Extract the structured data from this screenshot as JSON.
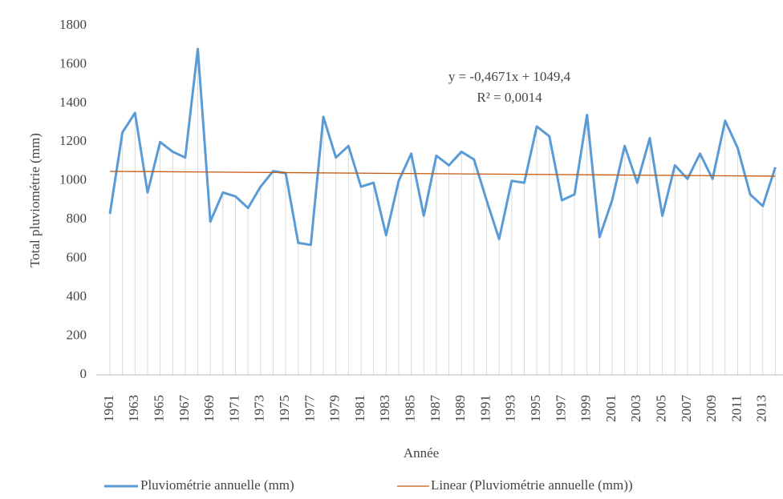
{
  "chart_data": {
    "type": "line",
    "y_label": "Total pluviométrie (mm)",
    "x_label": "Année",
    "categories": [
      "1961",
      null,
      "1963",
      null,
      "1965",
      null,
      "1967",
      null,
      "1969",
      null,
      "1971",
      null,
      "1973",
      null,
      "1975",
      null,
      "1977",
      null,
      "1979",
      null,
      "1981",
      null,
      "1983",
      null,
      "1985",
      null,
      "1987",
      null,
      "1989",
      null,
      "1991",
      null,
      "1993",
      null,
      "1995",
      null,
      "1997",
      null,
      "1999",
      null,
      "2001",
      null,
      "2003",
      null,
      "2005",
      null,
      "2007",
      null,
      "2009",
      null,
      "2011",
      null,
      "2013",
      null
    ],
    "series": [
      {
        "name": "Pluviométrie annuelle (mm)",
        "color": "#5b9bd5",
        "values": [
          830,
          1250,
          1350,
          940,
          1200,
          1150,
          1120,
          1680,
          790,
          940,
          920,
          860,
          970,
          1050,
          1040,
          680,
          670,
          1330,
          1120,
          1180,
          970,
          990,
          720,
          1000,
          1140,
          820,
          1130,
          1080,
          1150,
          1110,
          900,
          700,
          1000,
          990,
          1280,
          1230,
          900,
          930,
          1340,
          710,
          900,
          1180,
          990,
          1220,
          820,
          1080,
          1010,
          1140,
          1010,
          1310,
          1170,
          930,
          870,
          1070
        ]
      },
      {
        "name": "Linear (Pluviométrie annuelle (mm))",
        "color": "#c55a11",
        "slope": -0.4671,
        "intercept": 1049.4
      }
    ],
    "annotations": [
      "y = -0,4671x + 1049,4",
      "R² = 0,0014"
    ],
    "ylim": [
      0,
      1800
    ],
    "yticks": [
      0,
      200,
      400,
      600,
      800,
      1000,
      1200,
      1400,
      1600,
      1800
    ],
    "drop_lines": true,
    "grid": false,
    "legend": "bottom"
  }
}
